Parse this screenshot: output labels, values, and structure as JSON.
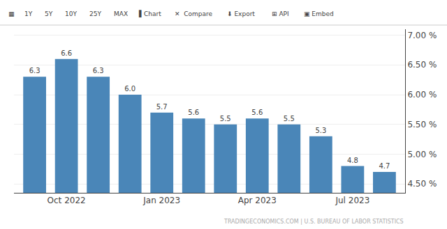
{
  "chart_data": {
    "type": "bar",
    "categories": [
      null,
      "Oct 2022",
      null,
      null,
      "Jan 2023",
      null,
      null,
      "Apr 2023",
      null,
      null,
      "Jul 2023",
      null
    ],
    "values": [
      6.3,
      6.6,
      6.3,
      6.0,
      5.7,
      5.6,
      5.5,
      5.6,
      5.5,
      5.3,
      4.8,
      4.7
    ],
    "value_labels": [
      "6.3",
      "6.6",
      "6.3",
      "6.0",
      "5.7",
      "5.6",
      "5.5",
      "5.6",
      "5.5",
      "5.3",
      "4.8",
      "4.7"
    ],
    "data_labels": true,
    "color": "#4a86b8",
    "ylim": [
      4.35,
      7.1
    ],
    "yticks": [
      {
        "value": 4.5,
        "label": "4.50 %"
      },
      {
        "value": 5.0,
        "label": "5.00 %"
      },
      {
        "value": 5.5,
        "label": "5.50 %"
      },
      {
        "value": 6.0,
        "label": "6.00 %"
      },
      {
        "value": 6.5,
        "label": "6.50 %"
      },
      {
        "value": 7.0,
        "label": "7.00 %"
      }
    ],
    "grid": true,
    "annotations": [
      {
        "text": "▦"
      },
      {
        "text": "1Y"
      },
      {
        "text": "5Y"
      },
      {
        "text": "10Y"
      },
      {
        "text": "25Y"
      },
      {
        "text": "MAX"
      },
      {
        "text": "▌Chart"
      },
      {
        "text": "✕  Compare"
      },
      {
        "text": "⬇ Export"
      },
      {
        "text": "⊞ API"
      },
      {
        "text": "▣ Embed"
      },
      {
        "text": "TRADINGECONOMICS.COM | U.S. BUREAU OF LABOR STATISTICS"
      }
    ]
  }
}
